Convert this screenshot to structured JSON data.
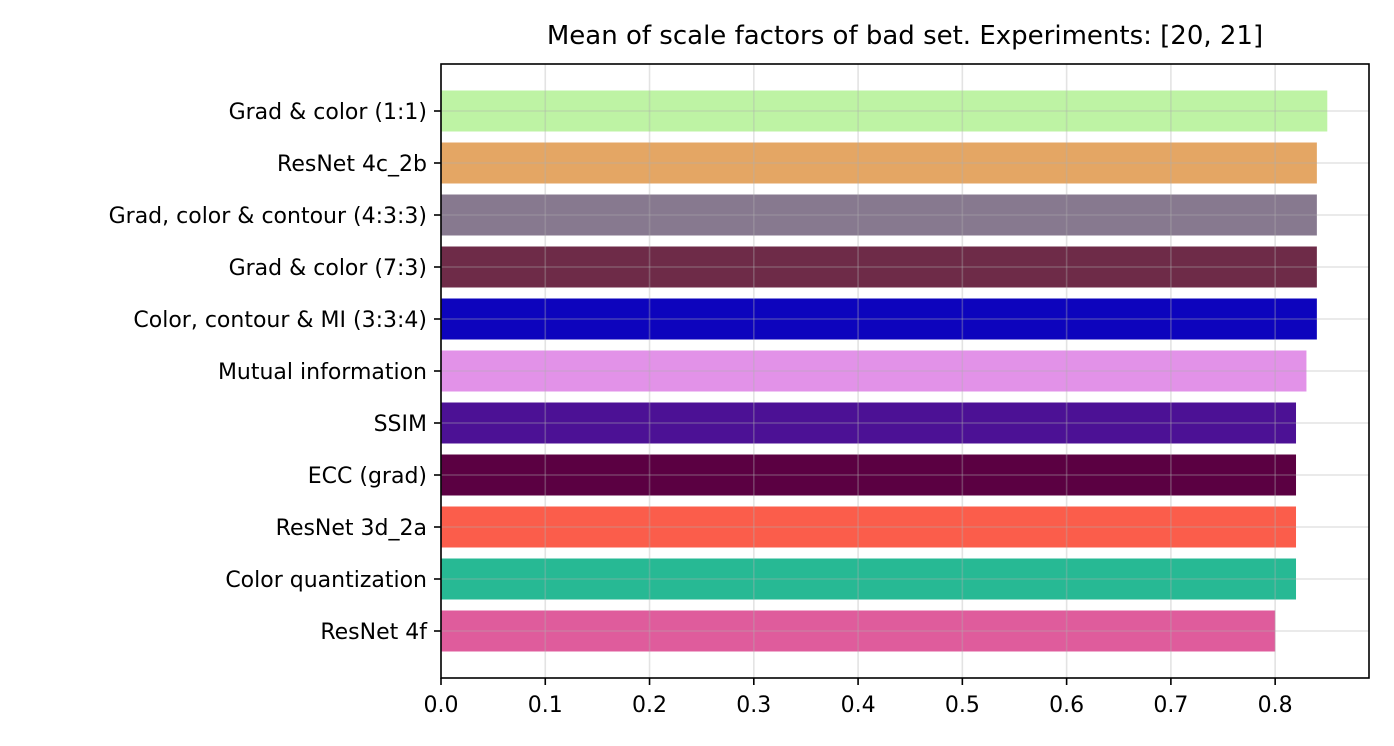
{
  "chart_data": {
    "type": "bar",
    "orientation": "horizontal",
    "title": "Mean of scale factors of bad set. Experiments: [20, 21]",
    "xlabel": "",
    "ylabel": "",
    "xlim": [
      0.0,
      0.89
    ],
    "x_ticks": [
      "0.0",
      "0.1",
      "0.2",
      "0.3",
      "0.4",
      "0.5",
      "0.6",
      "0.7",
      "0.8"
    ],
    "grid": true,
    "legend": "none",
    "categories": [
      "Grad & color (1:1)",
      "ResNet 4c_2b",
      "Grad, color & contour (4:3:3)",
      "Grad & color (7:3)",
      "Color, contour & MI (3:3:4)",
      "Mutual information",
      "SSIM",
      "ECC (grad)",
      "ResNet 3d_2a",
      "Color quantization",
      "ResNet 4f"
    ],
    "values": [
      0.85,
      0.84,
      0.84,
      0.84,
      0.84,
      0.83,
      0.82,
      0.82,
      0.82,
      0.82,
      0.8
    ],
    "colors": [
      "#bef3a4",
      "#e4a664",
      "#87798f",
      "#6e2b48",
      "#0d04bd",
      "#e292e8",
      "#4c1195",
      "#5b0042",
      "#fb5d4b",
      "#27b994",
      "#df5c9c"
    ]
  }
}
